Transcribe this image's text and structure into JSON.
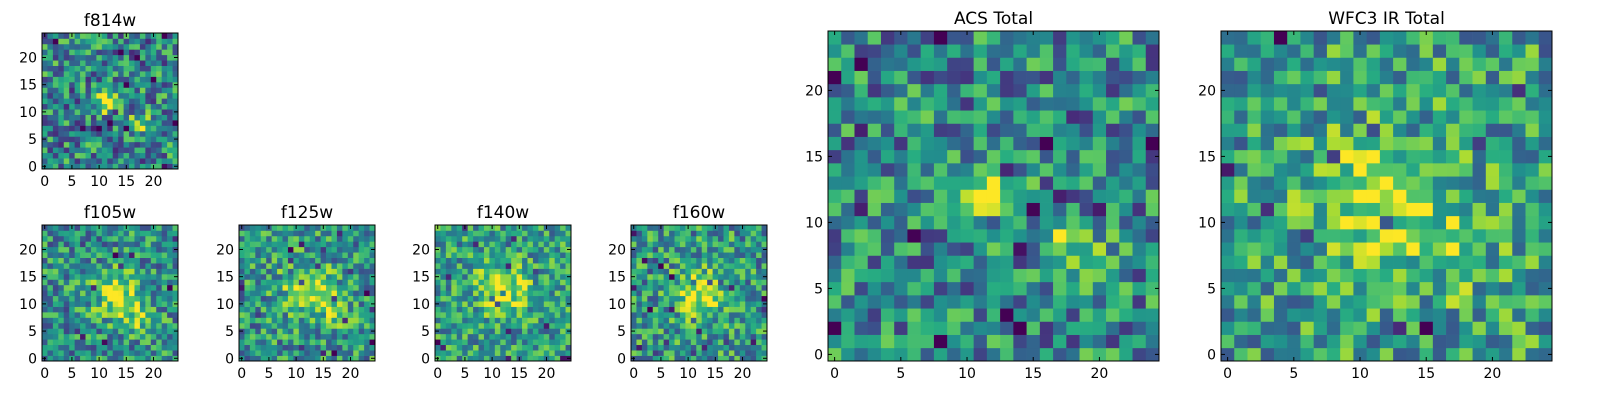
{
  "chart_data": [
    {
      "type": "heatmap",
      "title": "f814w",
      "rows": 25,
      "cols": 25,
      "seed": 11,
      "peaks": [
        {
          "x": 12,
          "y": 12,
          "amp": 0.55,
          "sigma": 1.6
        },
        {
          "x": 18,
          "y": 8,
          "amp": 0.35,
          "sigma": 1.6
        }
      ],
      "base": 0.46,
      "noise": 0.34,
      "xticks": [
        0,
        5,
        10,
        15,
        20
      ],
      "yticks": [
        0,
        5,
        10,
        15,
        20
      ]
    },
    {
      "type": "heatmap",
      "title": "f105w",
      "rows": 25,
      "cols": 25,
      "seed": 23,
      "peaks": [
        {
          "x": 13,
          "y": 12,
          "amp": 0.42,
          "sigma": 3.0
        },
        {
          "x": 17,
          "y": 8,
          "amp": 0.25,
          "sigma": 2.5
        }
      ],
      "base": 0.5,
      "noise": 0.3,
      "xticks": [
        0,
        5,
        10,
        15,
        20
      ],
      "yticks": [
        0,
        5,
        10,
        15,
        20
      ]
    },
    {
      "type": "heatmap",
      "title": "f125w",
      "rows": 25,
      "cols": 25,
      "seed": 37,
      "peaks": [
        {
          "x": 12,
          "y": 13,
          "amp": 0.4,
          "sigma": 3.0
        },
        {
          "x": 17,
          "y": 9,
          "amp": 0.22,
          "sigma": 2.5
        }
      ],
      "base": 0.52,
      "noise": 0.3,
      "xticks": [
        0,
        5,
        10,
        15,
        20
      ],
      "yticks": [
        0,
        5,
        10,
        15,
        20
      ]
    },
    {
      "type": "heatmap",
      "title": "f140w",
      "rows": 25,
      "cols": 25,
      "seed": 41,
      "peaks": [
        {
          "x": 12,
          "y": 13,
          "amp": 0.4,
          "sigma": 3.2
        }
      ],
      "base": 0.55,
      "noise": 0.28,
      "xticks": [
        0,
        5,
        10,
        15,
        20
      ],
      "yticks": [
        0,
        5,
        10,
        15,
        20
      ]
    },
    {
      "type": "heatmap",
      "title": "f160w",
      "rows": 25,
      "cols": 25,
      "seed": 53,
      "peaks": [
        {
          "x": 12,
          "y": 12,
          "amp": 0.45,
          "sigma": 3.0
        }
      ],
      "base": 0.53,
      "noise": 0.3,
      "xticks": [
        0,
        5,
        10,
        15,
        20
      ],
      "yticks": [
        0,
        5,
        10,
        15,
        20
      ]
    },
    {
      "type": "heatmap",
      "title": "ACS Total",
      "rows": 25,
      "cols": 25,
      "seed": 67,
      "peaks": [
        {
          "x": 12,
          "y": 12,
          "amp": 0.55,
          "sigma": 1.5
        },
        {
          "x": 18,
          "y": 8,
          "amp": 0.35,
          "sigma": 1.5
        }
      ],
      "base": 0.47,
      "noise": 0.32,
      "xticks": [
        0,
        5,
        10,
        15,
        20
      ],
      "yticks": [
        0,
        5,
        10,
        15,
        20
      ]
    },
    {
      "type": "heatmap",
      "title": "WFC3 IR Total",
      "rows": 25,
      "cols": 25,
      "seed": 79,
      "peaks": [
        {
          "x": 11,
          "y": 12,
          "amp": 0.38,
          "sigma": 3.0
        },
        {
          "x": 17,
          "y": 8,
          "amp": 0.2,
          "sigma": 2.5
        }
      ],
      "base": 0.56,
      "noise": 0.3,
      "xticks": [
        0,
        5,
        10,
        15,
        20
      ],
      "yticks": [
        0,
        5,
        10,
        15,
        20
      ]
    }
  ],
  "colormap": [
    "#440154",
    "#472c7a",
    "#3b518b",
    "#2c718e",
    "#21908d",
    "#27ad81",
    "#5cc863",
    "#aadc32",
    "#fde725"
  ]
}
